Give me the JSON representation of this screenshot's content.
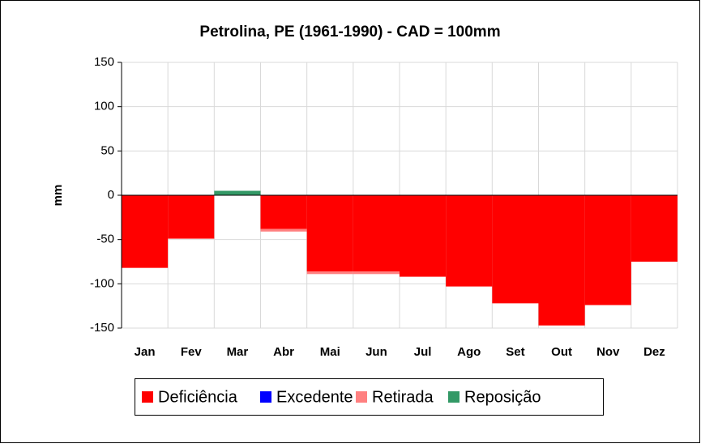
{
  "chart_data": {
    "type": "bar",
    "stacked": true,
    "title": "Petrolina, PE (1961-1990) - CAD = 100mm",
    "y_label": "mm",
    "categories": [
      "Jan",
      "Fev",
      "Mar",
      "Abr",
      "Mai",
      "Jun",
      "Jul",
      "Ago",
      "Set",
      "Out",
      "Nov",
      "Dez"
    ],
    "series": [
      {
        "name": "Deficiência",
        "color": "#ff0000",
        "values": [
          -82,
          -49,
          0,
          -38,
          -86,
          -86,
          -92,
          -103,
          -122,
          -147,
          -124,
          -75
        ]
      },
      {
        "name": "Excedente",
        "color": "#0000ff",
        "values": [
          0,
          0,
          0,
          0,
          0,
          0,
          0,
          0,
          0,
          0,
          0,
          0
        ]
      },
      {
        "name": "Retirada",
        "color": "#ff8080",
        "values": [
          0,
          0,
          0,
          -3,
          -3,
          -3,
          0,
          0,
          0,
          0,
          0,
          0
        ]
      },
      {
        "name": "Reposição",
        "color": "#339966",
        "values": [
          0,
          0,
          5,
          0,
          0,
          0,
          0,
          0,
          0,
          0,
          0,
          0
        ]
      }
    ],
    "ylim": [
      -150,
      150
    ],
    "yticks": [
      -150,
      -100,
      -50,
      0,
      50,
      100,
      150
    ],
    "grid": true,
    "legend": "bottom"
  }
}
